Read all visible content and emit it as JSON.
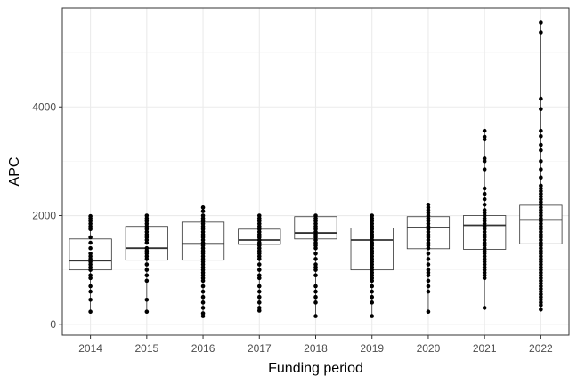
{
  "chart_data": {
    "type": "box",
    "xlabel": "Funding period",
    "ylabel": "APC",
    "ylim": [
      -200,
      5820
    ],
    "yticks": [
      0,
      2000,
      4000
    ],
    "grid": true,
    "categories": [
      "2014",
      "2015",
      "2016",
      "2017",
      "2018",
      "2019",
      "2020",
      "2021",
      "2022"
    ],
    "boxes": [
      {
        "q1": 1000,
        "median": 1170,
        "q3": 1570,
        "whisker_low": 230,
        "whisker_high": 2000
      },
      {
        "q1": 1180,
        "median": 1400,
        "q3": 1800,
        "whisker_low": 230,
        "whisker_high": 2000
      },
      {
        "q1": 1180,
        "median": 1480,
        "q3": 1880,
        "whisker_low": 150,
        "whisker_high": 2150
      },
      {
        "q1": 1470,
        "median": 1550,
        "q3": 1750,
        "whisker_low": 250,
        "whisker_high": 2000
      },
      {
        "q1": 1570,
        "median": 1680,
        "q3": 1980,
        "whisker_low": 150,
        "whisker_high": 2000
      },
      {
        "q1": 1000,
        "median": 1550,
        "q3": 1770,
        "whisker_low": 150,
        "whisker_high": 2000
      },
      {
        "q1": 1390,
        "median": 1780,
        "q3": 1980,
        "whisker_low": 230,
        "whisker_high": 2200
      },
      {
        "q1": 1380,
        "median": 1820,
        "q3": 2000,
        "whisker_low": 300,
        "whisker_high": 3560
      },
      {
        "q1": 1480,
        "median": 1920,
        "q3": 2190,
        "whisker_low": 270,
        "whisker_high": 5550
      }
    ],
    "points": [
      [
        1990,
        1950,
        1900,
        1850,
        1800,
        1750,
        1600,
        1500,
        1400,
        1300,
        1250,
        1200,
        1150,
        1100,
        1050,
        1000,
        900,
        850,
        700,
        600,
        450,
        230
      ],
      [
        2000,
        1950,
        1900,
        1850,
        1800,
        1750,
        1700,
        1650,
        1600,
        1550,
        1500,
        1400,
        1350,
        1300,
        1250,
        1200,
        1100,
        1000,
        900,
        800,
        450,
        230
      ],
      [
        2150,
        2080,
        2000,
        1950,
        1900,
        1850,
        1800,
        1750,
        1700,
        1650,
        1600,
        1550,
        1500,
        1450,
        1400,
        1350,
        1300,
        1250,
        1200,
        1150,
        1100,
        1050,
        1000,
        950,
        900,
        850,
        800,
        700,
        600,
        500,
        400,
        300,
        200,
        150
      ],
      [
        2000,
        1950,
        1900,
        1850,
        1800,
        1750,
        1700,
        1650,
        1600,
        1550,
        1500,
        1450,
        1400,
        1350,
        1300,
        1250,
        1200,
        1100,
        1000,
        900,
        850,
        700,
        600,
        500,
        400,
        300,
        250
      ],
      [
        2000,
        1950,
        1900,
        1850,
        1800,
        1750,
        1700,
        1650,
        1600,
        1550,
        1500,
        1450,
        1400,
        1300,
        1200,
        1100,
        1050,
        1000,
        900,
        700,
        600,
        500,
        400,
        150
      ],
      [
        2000,
        1950,
        1900,
        1850,
        1800,
        1750,
        1700,
        1650,
        1600,
        1550,
        1500,
        1450,
        1400,
        1350,
        1300,
        1250,
        1200,
        1150,
        1100,
        1050,
        1000,
        950,
        900,
        850,
        800,
        700,
        600,
        500,
        400,
        150
      ],
      [
        2200,
        2150,
        2100,
        2050,
        2000,
        1950,
        1900,
        1850,
        1800,
        1750,
        1700,
        1650,
        1600,
        1550,
        1500,
        1450,
        1400,
        1300,
        1200,
        1100,
        1000,
        950,
        900,
        800,
        700,
        600,
        230
      ],
      [
        3560,
        3450,
        3400,
        3050,
        3000,
        2850,
        2500,
        2400,
        2300,
        2200,
        2100,
        2050,
        2000,
        1950,
        1900,
        1850,
        1800,
        1750,
        1700,
        1650,
        1600,
        1550,
        1500,
        1450,
        1400,
        1350,
        1300,
        1250,
        1200,
        1150,
        1100,
        1050,
        1000,
        950,
        900,
        850,
        300
      ],
      [
        5550,
        5370,
        4150,
        3960,
        3560,
        3460,
        3300,
        3200,
        3000,
        2850,
        2700,
        2550,
        2500,
        2450,
        2400,
        2350,
        2300,
        2250,
        2200,
        2150,
        2100,
        2050,
        2000,
        1950,
        1900,
        1850,
        1800,
        1750,
        1700,
        1650,
        1600,
        1550,
        1500,
        1450,
        1400,
        1350,
        1300,
        1250,
        1200,
        1150,
        1100,
        1050,
        1000,
        950,
        900,
        850,
        800,
        750,
        700,
        650,
        600,
        550,
        500,
        450,
        400,
        350,
        270
      ]
    ]
  }
}
